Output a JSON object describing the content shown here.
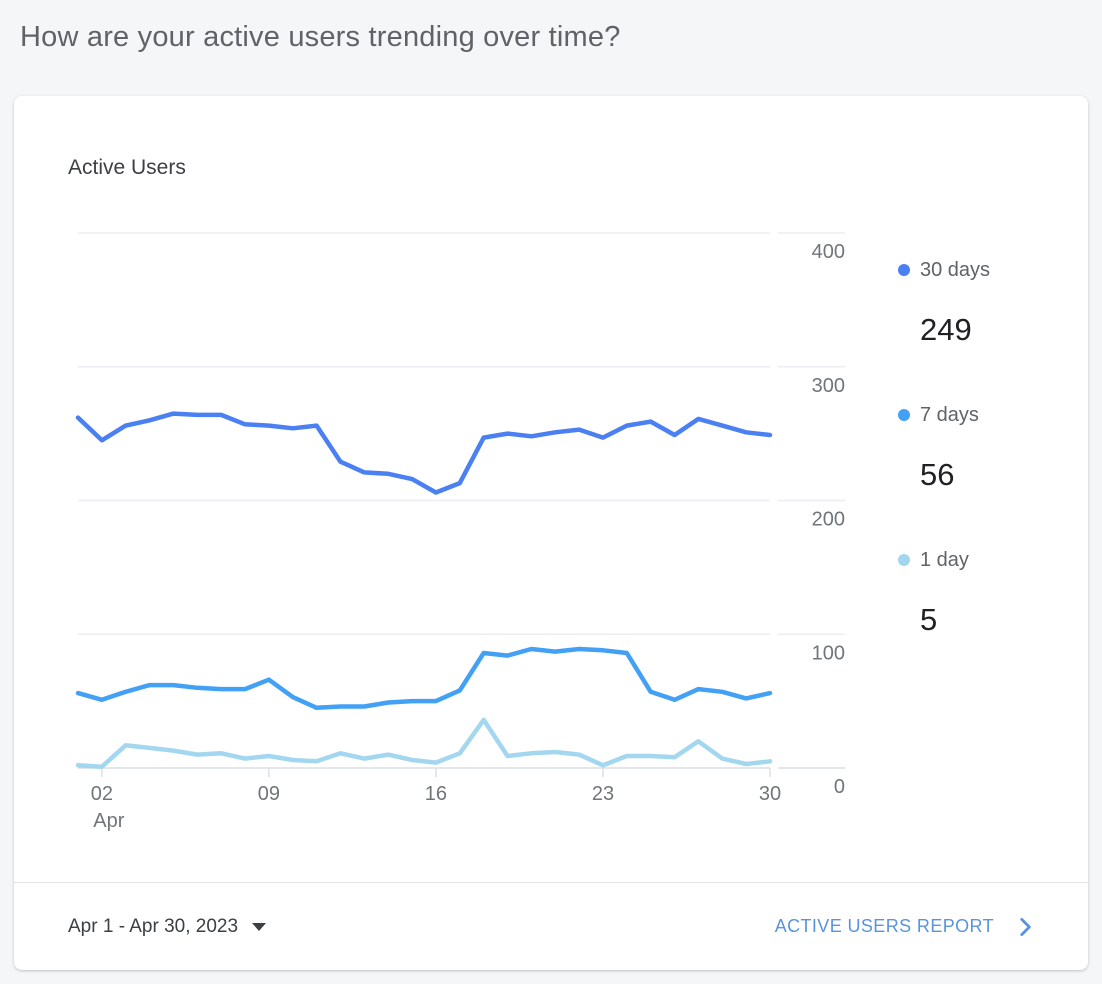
{
  "page": {
    "question": "How are your active users trending over time?",
    "background_color": "#f5f6f8"
  },
  "card": {
    "title": "Active Users",
    "footer": {
      "date_range": "Apr 1 - Apr 30, 2023",
      "report_link_label": "ACTIVE USERS REPORT",
      "link_color": "#5a94de"
    }
  },
  "legend": [
    {
      "label": "30 days",
      "value": "249",
      "color": "#4a80f2"
    },
    {
      "label": "7 days",
      "value": "56",
      "color": "#42a1f5"
    },
    {
      "label": "1 day",
      "value": "5",
      "color": "#a3d7ef"
    }
  ],
  "chart_data": {
    "type": "line",
    "title": "Active Users",
    "x": [
      1,
      2,
      3,
      4,
      5,
      6,
      7,
      8,
      9,
      10,
      11,
      12,
      13,
      14,
      15,
      16,
      17,
      18,
      19,
      20,
      21,
      22,
      23,
      24,
      25,
      26,
      27,
      28,
      29,
      30
    ],
    "x_tick_days": [
      2,
      9,
      16,
      23,
      30
    ],
    "x_tick_labels": [
      "02",
      "09",
      "16",
      "23",
      "30"
    ],
    "x_axis_month": "Apr",
    "ylim": [
      0,
      400
    ],
    "y_ticks": [
      0,
      100,
      200,
      300,
      400
    ],
    "grid": true,
    "legend_position": "right",
    "series": [
      {
        "name": "30 days",
        "color": "#4a80f2",
        "values": [
          262,
          245,
          256,
          260,
          265,
          264,
          264,
          257,
          256,
          254,
          256,
          229,
          221,
          220,
          216,
          206,
          213,
          247,
          250,
          248,
          251,
          253,
          247,
          256,
          259,
          249,
          261,
          256,
          251,
          249
        ]
      },
      {
        "name": "7 days",
        "color": "#42a1f5",
        "values": [
          56,
          51,
          57,
          62,
          62,
          60,
          59,
          59,
          66,
          53,
          45,
          46,
          46,
          49,
          50,
          50,
          58,
          86,
          84,
          89,
          87,
          89,
          88,
          86,
          57,
          51,
          59,
          57,
          52,
          56
        ]
      },
      {
        "name": "1 day",
        "color": "#a3d7ef",
        "values": [
          2,
          1,
          17,
          15,
          13,
          10,
          11,
          7,
          9,
          6,
          5,
          11,
          7,
          10,
          6,
          4,
          11,
          36,
          9,
          11,
          12,
          10,
          2,
          9,
          9,
          8,
          20,
          7,
          3,
          5
        ]
      }
    ]
  }
}
